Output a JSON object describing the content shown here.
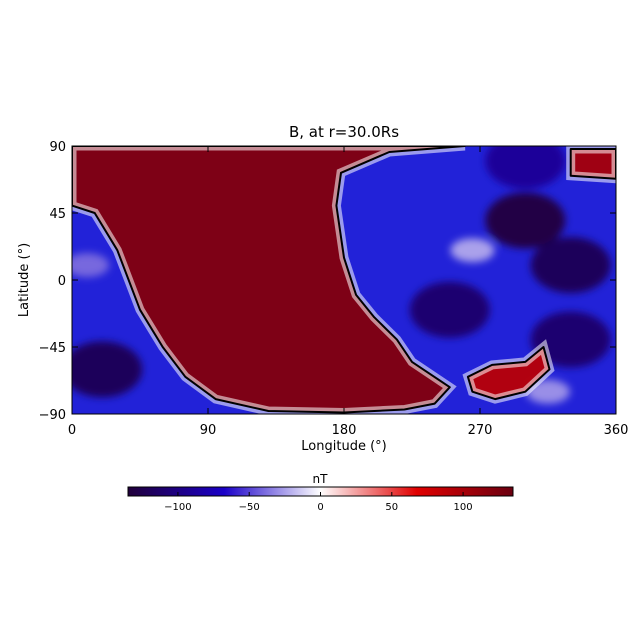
{
  "chart_data": {
    "type": "heatmap",
    "title": "B, at r=30.0Rs",
    "xlabel": "Longitude (°)",
    "ylabel": "Latitude (°)",
    "xlim": [
      0,
      360
    ],
    "ylim": [
      -90,
      90
    ],
    "xticks": [
      "0",
      "90",
      "180",
      "270",
      "360"
    ],
    "xtick_values": [
      0,
      90,
      180,
      270,
      360
    ],
    "yticks": [
      "90",
      "45",
      "0",
      "−45",
      "−90"
    ],
    "ytick_values": [
      90,
      45,
      0,
      -45,
      -90
    ],
    "colorbar": {
      "label": "nT",
      "range": [
        -135,
        135
      ],
      "ticks": [
        "−100",
        "−50",
        "0",
        "50",
        "100"
      ],
      "tick_values": [
        -100,
        -50,
        0,
        50,
        100
      ],
      "colormap": [
        "#20003a",
        "#1a00c8",
        "#ffffff",
        "#e00000",
        "#6a0010"
      ]
    },
    "regions": [
      {
        "name": "positive",
        "sign": 1,
        "value_nT": 120,
        "boundary": [
          [
            0,
            50
          ],
          [
            15,
            45
          ],
          [
            30,
            20
          ],
          [
            45,
            -20
          ],
          [
            60,
            -45
          ],
          [
            75,
            -65
          ],
          [
            95,
            -80
          ],
          [
            130,
            -88
          ],
          [
            180,
            -89
          ],
          [
            220,
            -87
          ],
          [
            240,
            -83
          ],
          [
            250,
            -72
          ],
          [
            225,
            -55
          ],
          [
            215,
            -40
          ],
          [
            200,
            -25
          ],
          [
            188,
            -10
          ],
          [
            180,
            15
          ],
          [
            175,
            50
          ],
          [
            178,
            72
          ],
          [
            210,
            86
          ],
          [
            260,
            90
          ],
          [
            0,
            90
          ]
        ]
      },
      {
        "name": "positive-south",
        "sign": 1,
        "value_nT": 90,
        "boundary": [
          [
            262,
            -65
          ],
          [
            278,
            -57
          ],
          [
            300,
            -55
          ],
          [
            312,
            -45
          ],
          [
            316,
            -60
          ],
          [
            300,
            -75
          ],
          [
            280,
            -80
          ],
          [
            265,
            -75
          ]
        ]
      },
      {
        "name": "positive-northeast",
        "sign": 1,
        "value_nT": 100,
        "boundary": [
          [
            330,
            88
          ],
          [
            360,
            88
          ],
          [
            360,
            68
          ],
          [
            330,
            70
          ]
        ]
      }
    ],
    "polarity_inversion_line": "black contour at B = 0 nT"
  }
}
